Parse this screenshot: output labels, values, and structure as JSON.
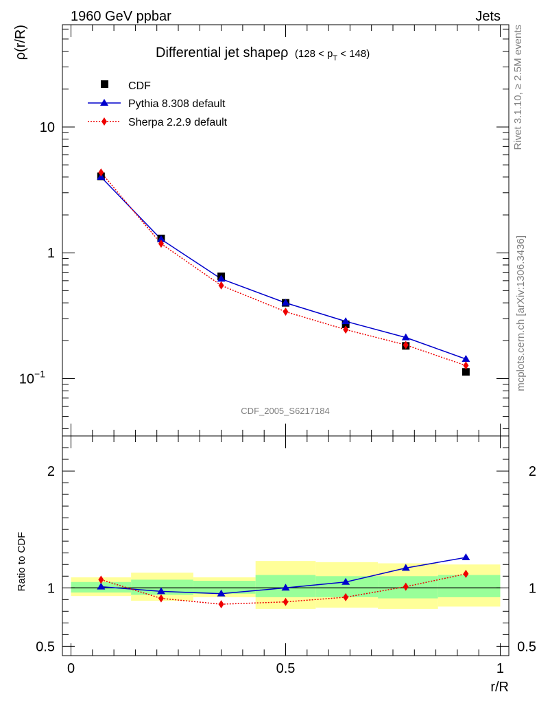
{
  "header": {
    "left": "1960 GeV ppbar",
    "right": "Jets"
  },
  "side_text": {
    "rivet": "Rivet 3.1.10, ≥ 2.5M events",
    "mcplots": "mcplots.cern.ch [arXiv:1306.3436]"
  },
  "watermark": "CDF_2005_S6217184",
  "chart_data": [
    {
      "type": "scatter",
      "title": "Differential jet shapeρ",
      "title_suffix": "(128 < p",
      "title_sub": "T",
      "title_end": " < 148)",
      "ylabel": "ρ(r/R)",
      "yscale": "log",
      "ylim": [
        0.035,
        65
      ],
      "xlim": [
        -0.02,
        1.02
      ],
      "y_ticks": [
        {
          "value": 10,
          "label": "10"
        },
        {
          "value": 1,
          "label": "1"
        },
        {
          "value": 0.1,
          "label": "10",
          "exp": "−1"
        }
      ],
      "legend": [
        "CDF",
        "Pythia 8.308 default",
        "Sherpa 2.2.9 default"
      ],
      "legend_placement": "top-left",
      "x": [
        0.07,
        0.21,
        0.35,
        0.5,
        0.64,
        0.78,
        0.92
      ],
      "series": [
        {
          "name": "CDF",
          "color": "#000000",
          "marker": "square",
          "values": [
            4.05,
            1.3,
            0.65,
            0.4,
            0.27,
            0.182,
            0.113
          ]
        },
        {
          "name": "Pythia 8.308 default",
          "color": "#0000cc",
          "marker": "triangle",
          "line": "solid",
          "values": [
            4.0,
            1.28,
            0.62,
            0.4,
            0.285,
            0.212,
            0.143
          ]
        },
        {
          "name": "Sherpa 2.2.9 default",
          "color": "#ee0000",
          "marker": "diamond",
          "line": "dotted",
          "values": [
            4.35,
            1.18,
            0.55,
            0.34,
            0.245,
            0.185,
            0.127
          ]
        }
      ]
    },
    {
      "type": "line",
      "ylabel": "Ratio to CDF",
      "xlabel": "r/R",
      "ylim": [
        0.42,
        2.3
      ],
      "xlim": [
        -0.02,
        1.02
      ],
      "x_ticks": [
        {
          "value": 0,
          "label": "0"
        },
        {
          "value": 0.5,
          "label": "0.5"
        },
        {
          "value": 1,
          "label": "1"
        }
      ],
      "y_ticks": [
        {
          "value": 2,
          "label": "2"
        },
        {
          "value": 1,
          "label": "1"
        },
        {
          "value": 0.5,
          "label": "0.5"
        }
      ],
      "bins": [
        0.0,
        0.14,
        0.285,
        0.43,
        0.57,
        0.715,
        0.855,
        1.0
      ],
      "band_yellow": [
        [
          0.93,
          1.09
        ],
        [
          0.89,
          1.13
        ],
        [
          0.92,
          1.09
        ],
        [
          0.82,
          1.23
        ],
        [
          0.83,
          1.22
        ],
        [
          0.82,
          1.21
        ],
        [
          0.84,
          1.2
        ]
      ],
      "band_green": [
        [
          0.96,
          1.05
        ],
        [
          0.94,
          1.07
        ],
        [
          0.95,
          1.06
        ],
        [
          0.92,
          1.11
        ],
        [
          0.92,
          1.1
        ],
        [
          0.91,
          1.1
        ],
        [
          0.92,
          1.11
        ]
      ],
      "x": [
        0.07,
        0.21,
        0.35,
        0.5,
        0.64,
        0.78,
        0.92
      ],
      "series": [
        {
          "name": "Pythia 8.308 default",
          "color": "#0000cc",
          "values": [
            1.01,
            0.97,
            0.95,
            1.0,
            1.05,
            1.17,
            1.26
          ]
        },
        {
          "name": "Sherpa 2.2.9 default",
          "color": "#ee0000",
          "values": [
            1.07,
            0.91,
            0.86,
            0.88,
            0.92,
            1.01,
            1.12
          ]
        }
      ]
    }
  ]
}
